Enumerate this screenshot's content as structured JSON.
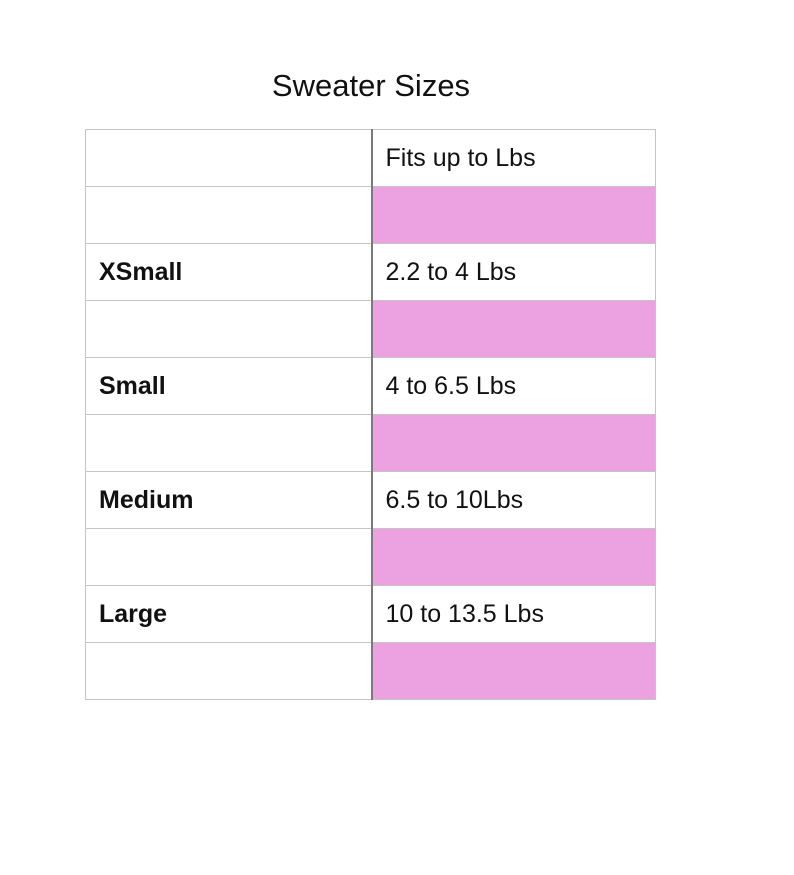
{
  "title": "Sweater Sizes",
  "accent_color": "#eca2e0",
  "table": {
    "header": [
      "",
      "Fits up to Lbs"
    ],
    "rows": [
      {
        "size": "",
        "fits": "",
        "highlight": true
      },
      {
        "size": "XSmall",
        "fits": "2.2 to 4 Lbs",
        "highlight": false
      },
      {
        "size": "",
        "fits": "",
        "highlight": true
      },
      {
        "size": "Small",
        "fits": "4 to 6.5 Lbs",
        "highlight": false
      },
      {
        "size": "",
        "fits": "",
        "highlight": true
      },
      {
        "size": "Medium",
        "fits": "6.5 to 10Lbs",
        "highlight": false
      },
      {
        "size": "",
        "fits": "",
        "highlight": true
      },
      {
        "size": "Large",
        "fits": "10 to 13.5 Lbs",
        "highlight": false
      },
      {
        "size": "",
        "fits": "",
        "highlight": true
      }
    ]
  }
}
